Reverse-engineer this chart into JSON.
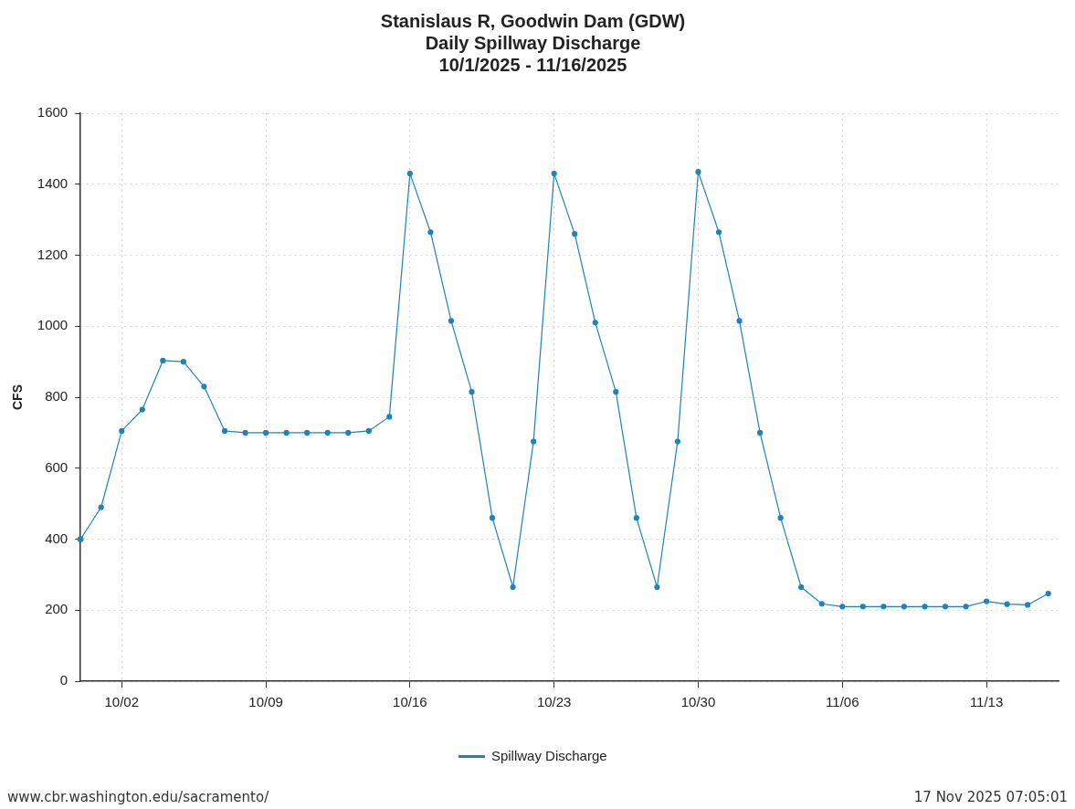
{
  "chart_data": {
    "type": "line",
    "title": [
      "Stanislaus R, Goodwin Dam (GDW)",
      "Daily Spillway Discharge",
      "10/1/2025 - 11/16/2025"
    ],
    "ylabel": "CFS",
    "x": [
      "2025-09-30",
      "2025-10-01",
      "2025-10-02",
      "2025-10-03",
      "2025-10-04",
      "2025-10-05",
      "2025-10-06",
      "2025-10-07",
      "2025-10-08",
      "2025-10-09",
      "2025-10-10",
      "2025-10-11",
      "2025-10-12",
      "2025-10-13",
      "2025-10-14",
      "2025-10-15",
      "2025-10-16",
      "2025-10-17",
      "2025-10-18",
      "2025-10-19",
      "2025-10-20",
      "2025-10-21",
      "2025-10-22",
      "2025-10-23",
      "2025-10-24",
      "2025-10-25",
      "2025-10-26",
      "2025-10-27",
      "2025-10-28",
      "2025-10-29",
      "2025-10-30",
      "2025-10-31",
      "2025-11-01",
      "2025-11-02",
      "2025-11-03",
      "2025-11-04",
      "2025-11-05",
      "2025-11-06",
      "2025-11-07",
      "2025-11-08",
      "2025-11-09",
      "2025-11-10",
      "2025-11-11",
      "2025-11-12",
      "2025-11-13",
      "2025-11-14",
      "2025-11-15",
      "2025-11-16"
    ],
    "series": [
      {
        "name": "Spillway Discharge",
        "color": "#1f83b8",
        "values": [
          400,
          490,
          705,
          765,
          903,
          900,
          830,
          705,
          700,
          700,
          700,
          700,
          700,
          700,
          705,
          745,
          1430,
          1265,
          1015,
          815,
          460,
          265,
          675,
          1430,
          1260,
          1010,
          815,
          460,
          265,
          675,
          1435,
          1265,
          1015,
          700,
          460,
          265,
          218,
          210,
          210,
          210,
          210,
          210,
          210,
          210,
          225,
          217,
          215,
          247
        ]
      }
    ],
    "xlim": [
      "2025-09-30",
      "2025-11-16T12:00"
    ],
    "xticks": [
      {
        "value": "2025-10-02",
        "label": "10/02"
      },
      {
        "value": "2025-10-09",
        "label": "10/09"
      },
      {
        "value": "2025-10-16",
        "label": "10/16"
      },
      {
        "value": "2025-10-23",
        "label": "10/23"
      },
      {
        "value": "2025-10-30",
        "label": "10/30"
      },
      {
        "value": "2025-11-06",
        "label": "11/06"
      },
      {
        "value": "2025-11-13",
        "label": "11/13"
      }
    ],
    "ylim": [
      0,
      1600
    ],
    "yticks": [
      0,
      200,
      400,
      600,
      800,
      1000,
      1200,
      1400,
      1600
    ],
    "grid": true,
    "legend": "bottom",
    "marker": "circle",
    "line_style": "solid",
    "annotations": [
      "www.cbr.washington.edu/sacramento/",
      "17 Nov 2025 07:05:01"
    ]
  }
}
